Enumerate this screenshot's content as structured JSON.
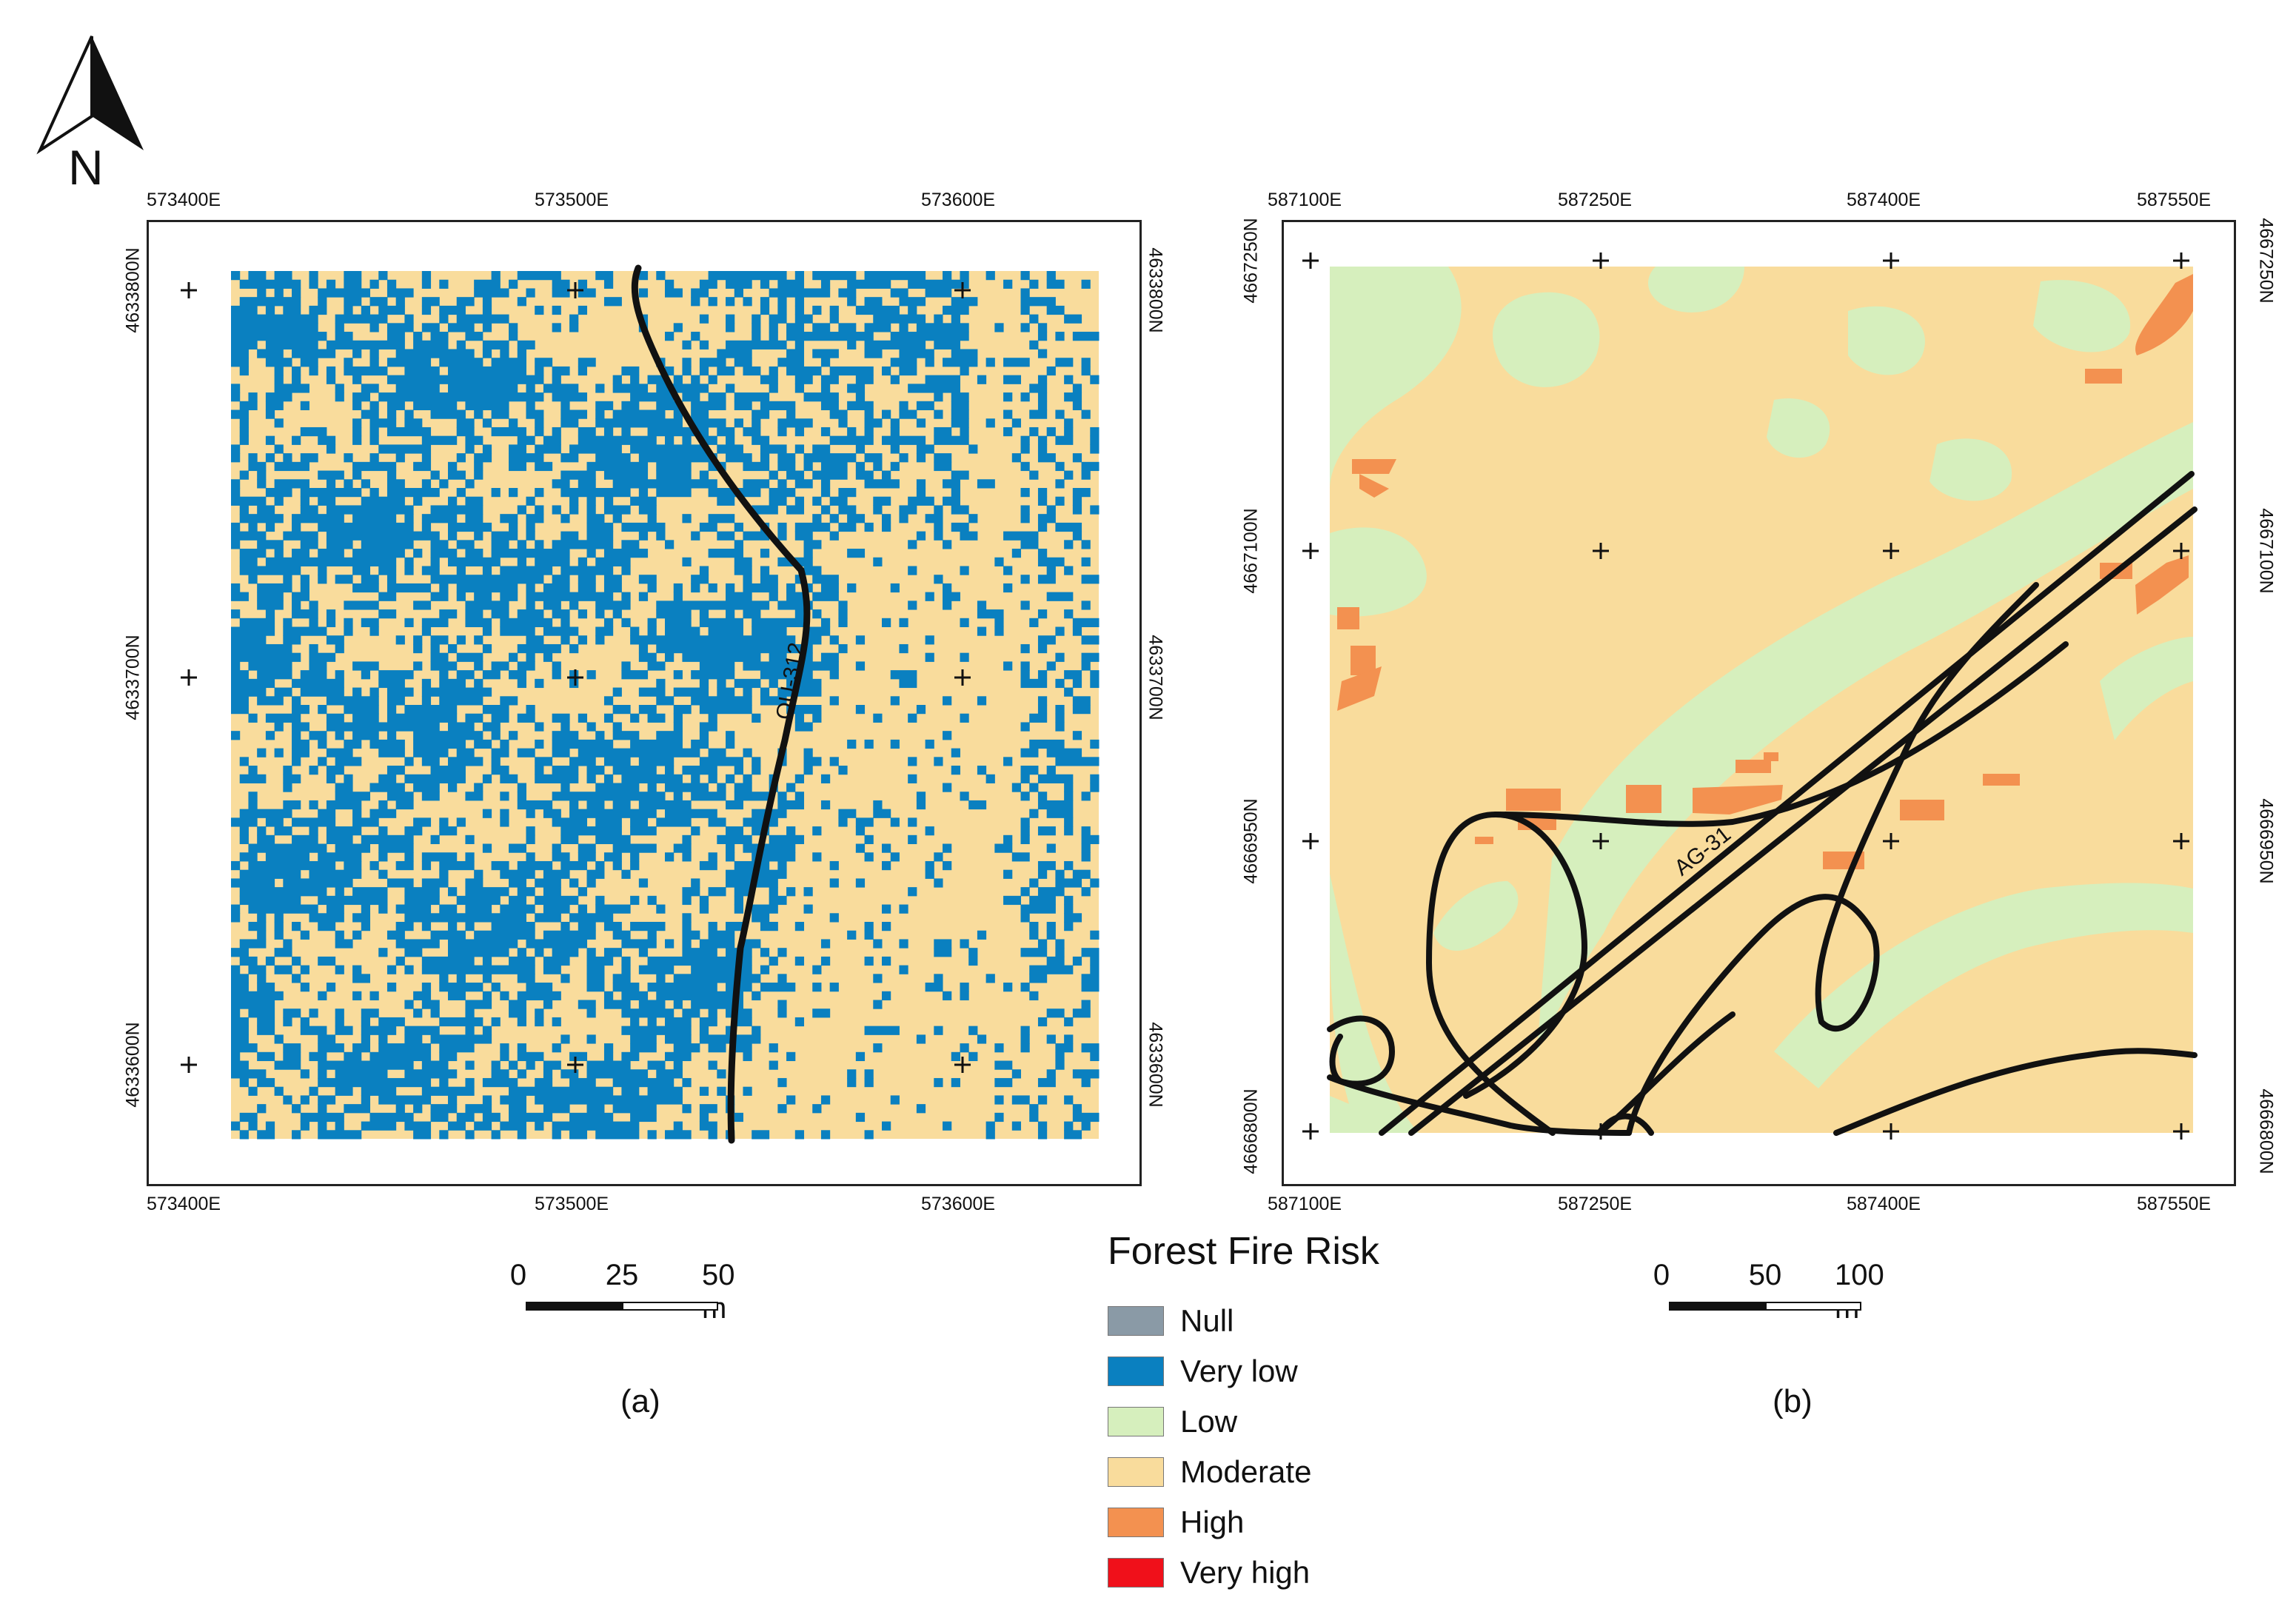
{
  "north": {
    "label": "N"
  },
  "map_a": {
    "x_ticks_top": [
      "573400E",
      "573500E",
      "573600E"
    ],
    "x_ticks_bottom": [
      "573400E",
      "573500E",
      "573600E"
    ],
    "y_ticks_left": [
      "4633800N",
      "4633700N",
      "4633600N"
    ],
    "y_ticks_right": [
      "4633800N",
      "4633700N",
      "4633600N"
    ],
    "road_label": "OU-312",
    "panel_label": "(a)",
    "scale": {
      "labels": [
        "0",
        "25",
        "50 m"
      ]
    }
  },
  "map_b": {
    "x_ticks_top": [
      "587100E",
      "587250E",
      "587400E",
      "587550E"
    ],
    "x_ticks_bottom": [
      "587100E",
      "587250E",
      "587400E",
      "587550E"
    ],
    "y_ticks_left": [
      "4667250N",
      "4667100N",
      "4666950N",
      "4666800N"
    ],
    "y_ticks_right": [
      "4667250N",
      "4667100N",
      "4666950N",
      "4666800N"
    ],
    "road_label": "AG-31",
    "panel_label": "(b)",
    "scale": {
      "labels": [
        "0",
        "50",
        "100 m"
      ]
    }
  },
  "legend": {
    "title": "Forest Fire Risk",
    "items": [
      {
        "label": "Null",
        "color": "#8a9aa6"
      },
      {
        "label": "Very low",
        "color": "#0a80c0"
      },
      {
        "label": "Low",
        "color": "#d6efbd"
      },
      {
        "label": "Moderate",
        "color": "#f9dc9c"
      },
      {
        "label": "High",
        "color": "#f39150"
      },
      {
        "label": "Very high",
        "color": "#f0101a"
      }
    ]
  }
}
